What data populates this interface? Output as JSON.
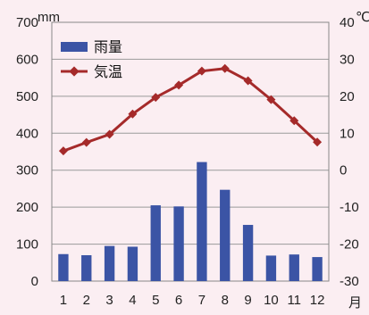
{
  "chart_data": {
    "type": "bar+line",
    "categories": [
      "1",
      "2",
      "3",
      "4",
      "5",
      "6",
      "7",
      "8",
      "9",
      "10",
      "11",
      "12"
    ],
    "xlabel": "月",
    "series": [
      {
        "name": "雨量",
        "type": "bar",
        "axis": "left",
        "color": "#3b54a5",
        "values": [
          73,
          70,
          95,
          93,
          205,
          202,
          322,
          247,
          152,
          69,
          72,
          65
        ]
      },
      {
        "name": "気温",
        "type": "line",
        "axis": "right",
        "color": "#a52a2a",
        "values": [
          5.2,
          7.5,
          9.7,
          15.2,
          19.7,
          23.0,
          26.8,
          27.5,
          24.2,
          19.1,
          13.4,
          7.6
        ]
      }
    ],
    "left_axis": {
      "unit": "mm",
      "ylim": [
        0,
        700
      ],
      "ticks": [
        "0",
        "100",
        "200",
        "300",
        "400",
        "500",
        "600",
        "700"
      ]
    },
    "right_axis": {
      "unit": "℃",
      "ylim": [
        -30,
        40
      ],
      "ticks": [
        "-30",
        "-20",
        "-10",
        "0",
        "10",
        "20",
        "30",
        "40"
      ]
    },
    "grid": true,
    "legend_position": "top-left"
  }
}
